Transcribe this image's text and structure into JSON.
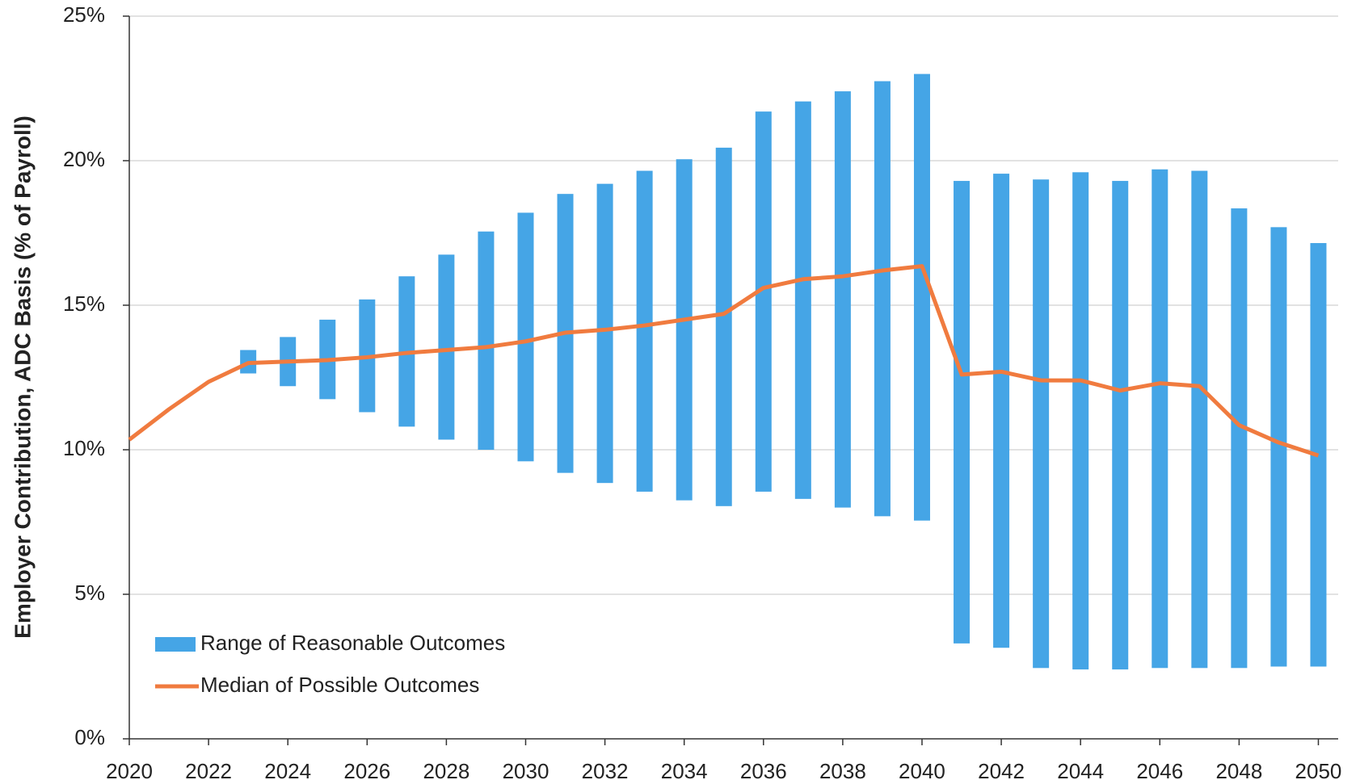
{
  "chart_data": {
    "type": "range-bar-line",
    "y_label": "Employer Contribution, ADC Basis (% of Payroll)",
    "xlim": [
      2020,
      2050.5
    ],
    "xticks": [
      2020,
      2022,
      2024,
      2026,
      2028,
      2030,
      2032,
      2034,
      2036,
      2038,
      2040,
      2042,
      2044,
      2046,
      2048,
      2050
    ],
    "ylim": [
      0,
      25
    ],
    "yticks": [
      {
        "value": 0,
        "label": "0%"
      },
      {
        "value": 5,
        "label": "5%"
      },
      {
        "value": 10,
        "label": "10%"
      },
      {
        "value": 15,
        "label": "15%"
      },
      {
        "value": 20,
        "label": "20%"
      },
      {
        "value": 25,
        "label": "25%"
      }
    ],
    "grid": true,
    "legend": "lower left",
    "series": [
      {
        "name": "Range of Reasonable Outcomes",
        "color": "#45a5e6",
        "x": [
          2023,
          2024,
          2025,
          2026,
          2027,
          2028,
          2029,
          2030,
          2031,
          2032,
          2033,
          2034,
          2035,
          2036,
          2037,
          2038,
          2039,
          2040,
          2041,
          2042,
          2043,
          2044,
          2045,
          2046,
          2047,
          2048,
          2049,
          2050
        ],
        "low": [
          12.64,
          12.2,
          11.75,
          11.3,
          10.8,
          10.35,
          10.0,
          9.6,
          9.2,
          8.85,
          8.55,
          8.25,
          8.05,
          8.55,
          8.3,
          8.0,
          7.7,
          7.55,
          3.3,
          3.15,
          2.45,
          2.4,
          2.4,
          2.45,
          2.45,
          2.45,
          2.5,
          2.5
        ],
        "high": [
          13.45,
          13.9,
          14.5,
          15.2,
          16.0,
          16.75,
          17.55,
          18.2,
          18.85,
          19.2,
          19.65,
          20.05,
          20.45,
          21.7,
          22.05,
          22.4,
          22.75,
          23.0,
          19.3,
          19.55,
          19.35,
          19.6,
          19.3,
          19.7,
          19.65,
          18.35,
          17.7,
          17.15
        ]
      },
      {
        "name": "Median of Possible Outcomes",
        "color": "#f07b3f",
        "x": [
          2020,
          2021,
          2022,
          2023,
          2024,
          2025,
          2026,
          2027,
          2028,
          2029,
          2030,
          2031,
          2032,
          2033,
          2034,
          2035,
          2036,
          2037,
          2038,
          2039,
          2040,
          2041,
          2042,
          2043,
          2044,
          2045,
          2046,
          2047,
          2048,
          2049,
          2050
        ],
        "values": [
          10.35,
          11.4,
          12.35,
          13.0,
          13.05,
          13.1,
          13.2,
          13.35,
          13.45,
          13.55,
          13.75,
          14.05,
          14.15,
          14.3,
          14.5,
          14.7,
          15.6,
          15.9,
          16.0,
          16.2,
          16.35,
          12.6,
          12.7,
          12.4,
          12.4,
          12.05,
          12.3,
          12.2,
          10.85,
          10.25,
          9.8
        ]
      }
    ]
  }
}
